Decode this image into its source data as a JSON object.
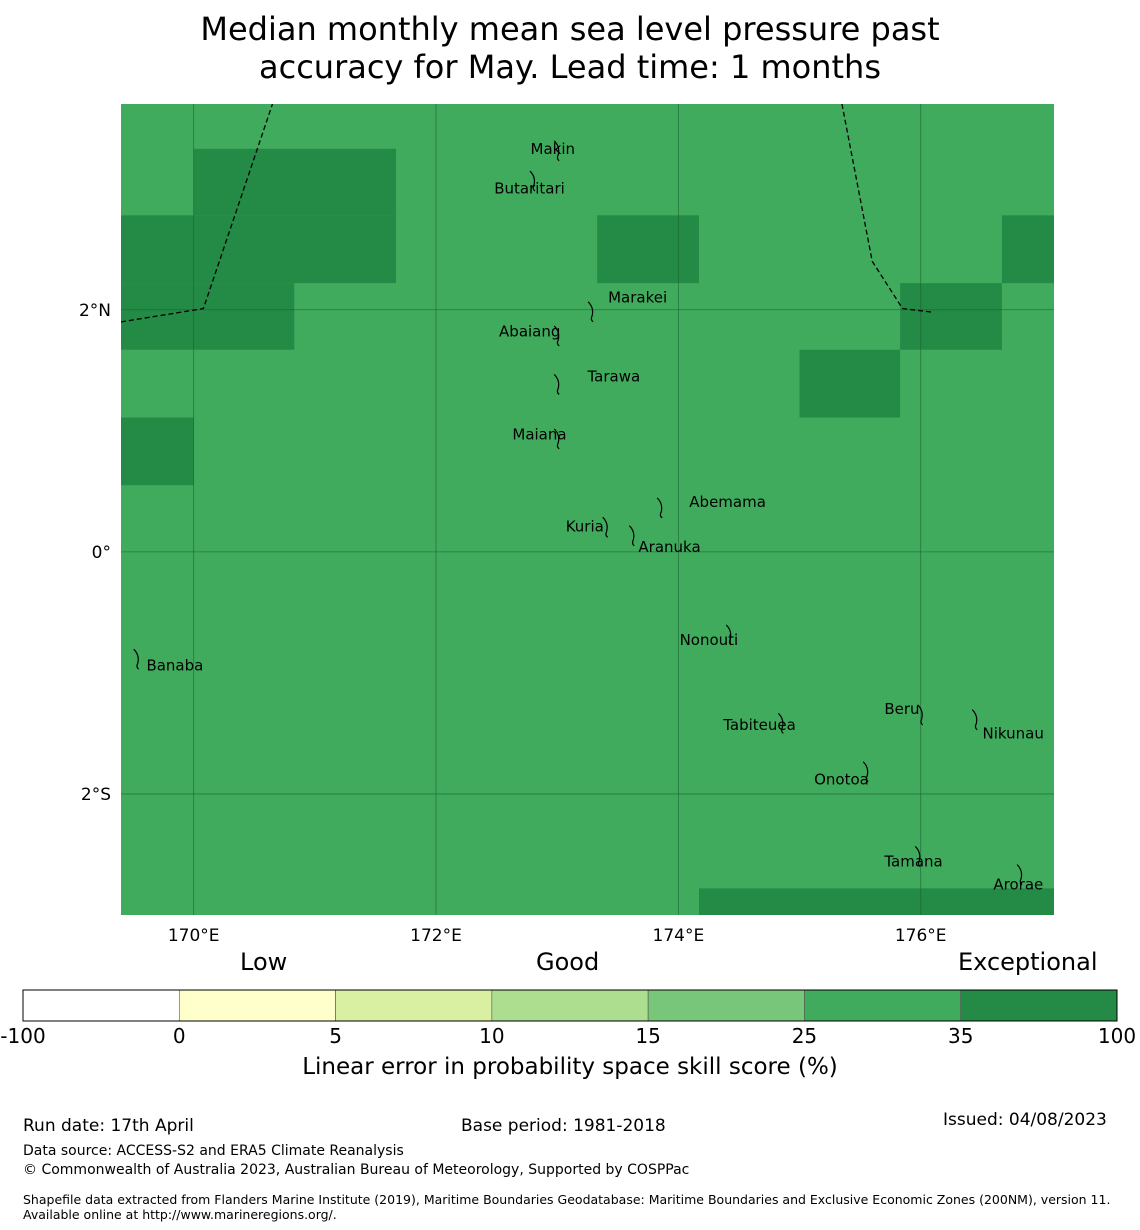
{
  "title_line1": "Median monthly mean sea level pressure past",
  "title_line2": "accuracy for May. Lead time: 1 months",
  "map": {
    "lon_range": [
      169.4,
      177.1
    ],
    "lat_range": [
      -3.0,
      3.7
    ],
    "lat_labels": [
      {
        "value": 2,
        "text": "2°N"
      },
      {
        "value": 0,
        "text": "0°"
      },
      {
        "value": -2,
        "text": "2°S"
      }
    ],
    "lon_labels": [
      {
        "value": 170,
        "text": "170°E"
      },
      {
        "value": 172,
        "text": "172°E"
      },
      {
        "value": 174,
        "text": "174°E"
      },
      {
        "value": 176,
        "text": "176°E"
      }
    ],
    "base_color": "#41ab5d",
    "exceptional_color": "#238b45",
    "exceptional_cells": [
      {
        "lon": [
          170.0,
          171.67
        ],
        "lat": [
          2.78,
          3.33
        ]
      },
      {
        "lon": [
          169.4,
          171.67
        ],
        "lat": [
          2.22,
          2.78
        ]
      },
      {
        "lon": [
          169.4,
          170.83
        ],
        "lat": [
          1.67,
          2.22
        ]
      },
      {
        "lon": [
          169.4,
          170.0
        ],
        "lat": [
          0.55,
          1.11
        ]
      },
      {
        "lon": [
          173.33,
          174.17
        ],
        "lat": [
          2.22,
          2.78
        ]
      },
      {
        "lon": [
          176.67,
          177.1
        ],
        "lat": [
          2.22,
          2.78
        ]
      },
      {
        "lon": [
          175.83,
          176.67
        ],
        "lat": [
          1.67,
          2.22
        ]
      },
      {
        "lon": [
          175.0,
          175.83
        ],
        "lat": [
          1.11,
          1.67
        ]
      },
      {
        "lon": [
          174.17,
          177.1
        ],
        "lat": [
          -3.0,
          -2.78
        ]
      }
    ],
    "boundaries": [
      [
        [
          169.4,
          1.9
        ],
        [
          170.08,
          2.01
        ],
        [
          170.65,
          3.7
        ]
      ],
      [
        [
          175.35,
          3.7
        ],
        [
          175.6,
          2.4
        ],
        [
          175.85,
          2.01
        ],
        [
          176.1,
          1.98
        ]
      ]
    ],
    "islands": [
      {
        "name": "Makin",
        "lon": 173.0,
        "lat": 3.33,
        "label_lon": 172.78,
        "label_lat": 3.33
      },
      {
        "name": "Butaritari",
        "lon": 172.8,
        "lat": 3.08,
        "label_lon": 172.48,
        "label_lat": 3.0
      },
      {
        "name": "Marakei",
        "lon": 173.28,
        "lat": 2.0,
        "label_lon": 173.42,
        "label_lat": 2.1
      },
      {
        "name": "Abaiang",
        "lon": 173.0,
        "lat": 1.8,
        "label_lon": 172.52,
        "label_lat": 1.82
      },
      {
        "name": "Tarawa",
        "lon": 173.0,
        "lat": 1.4,
        "label_lon": 173.25,
        "label_lat": 1.45
      },
      {
        "name": "Maiana",
        "lon": 173.0,
        "lat": 0.95,
        "label_lon": 172.63,
        "label_lat": 0.97
      },
      {
        "name": "Abemama",
        "lon": 173.85,
        "lat": 0.38,
        "label_lon": 174.09,
        "label_lat": 0.41
      },
      {
        "name": "Kuria",
        "lon": 173.4,
        "lat": 0.22,
        "label_lon": 173.07,
        "label_lat": 0.21
      },
      {
        "name": "Aranuka",
        "lon": 173.62,
        "lat": 0.15,
        "label_lon": 173.67,
        "label_lat": 0.04
      },
      {
        "name": "Nonouti",
        "lon": 174.42,
        "lat": -0.67,
        "label_lon": 174.01,
        "label_lat": -0.73
      },
      {
        "name": "Banaba",
        "lon": 169.53,
        "lat": -0.87,
        "label_lon": 169.61,
        "label_lat": -0.94
      },
      {
        "name": "Tabiteuea",
        "lon": 174.85,
        "lat": -1.4,
        "label_lon": 174.37,
        "label_lat": -1.43
      },
      {
        "name": "Beru",
        "lon": 176.0,
        "lat": -1.33,
        "label_lon": 175.7,
        "label_lat": -1.3
      },
      {
        "name": "Nikunau",
        "lon": 176.45,
        "lat": -1.37,
        "label_lon": 176.51,
        "label_lat": -1.5
      },
      {
        "name": "Onotoa",
        "lon": 175.55,
        "lat": -1.8,
        "label_lon": 175.12,
        "label_lat": -1.88
      },
      {
        "name": "Tamana",
        "lon": 175.98,
        "lat": -2.5,
        "label_lon": 175.7,
        "label_lat": -2.56
      },
      {
        "name": "Arorae",
        "lon": 176.82,
        "lat": -2.65,
        "label_lon": 176.6,
        "label_lat": -2.75
      }
    ]
  },
  "legend": {
    "low": "Low",
    "good": "Good",
    "exceptional": "Exceptional",
    "ticks": [
      "-100",
      "0",
      "5",
      "10",
      "15",
      "25",
      "35",
      "100"
    ],
    "colors": [
      "#ffffff",
      "#ffffcc",
      "#d9f0a3",
      "#addd8e",
      "#78c679",
      "#41ab5d",
      "#238b45"
    ],
    "label": "Linear error in probability space skill score (%)"
  },
  "footer": {
    "run_date": "Run date: 17th April",
    "base_period": "Base period: 1981-2018",
    "issued": "Issued: 04/08/2023",
    "data_source": "Data source: ACCESS-S2 and ERA5 Climate Reanalysis",
    "copyright": "© Commonwealth of Australia 2023, Australian Bureau of Meteorology, Supported by COSPPac",
    "shapefile": "Shapefile data extracted from Flanders Marine Institute (2019), Maritime Boundaries Geodatabase: Maritime Boundaries and Exclusive Economic Zones (200NM), version 11. Available online at http://www.marineregions.org/."
  }
}
